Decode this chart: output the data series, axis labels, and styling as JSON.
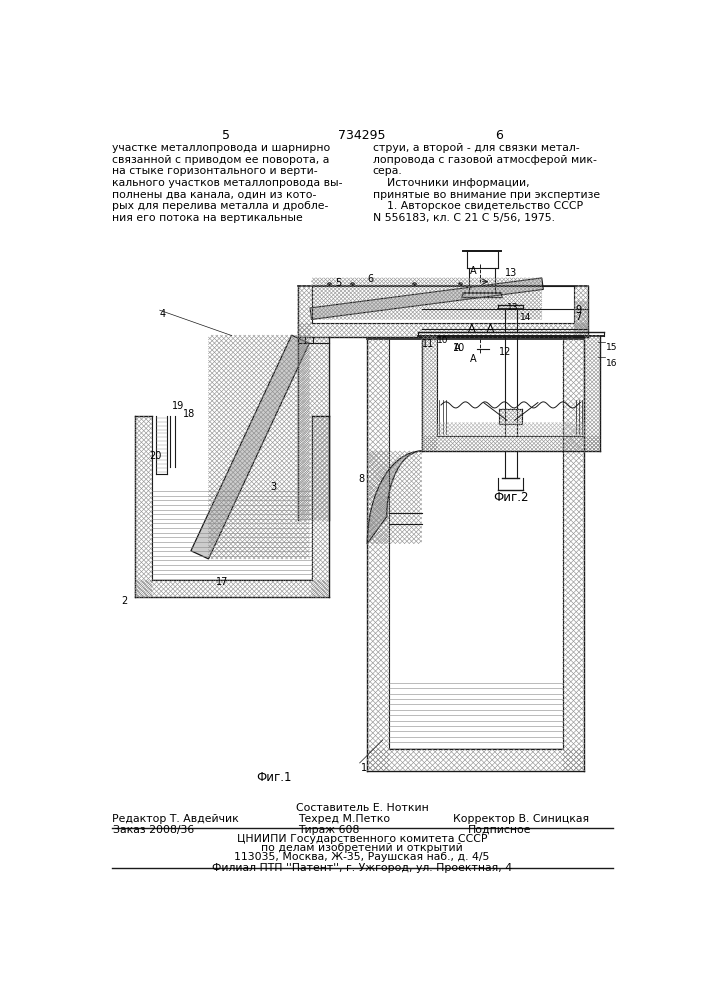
{
  "page_number_left": "5",
  "page_number_right": "6",
  "patent_number": "734295",
  "text_left_col": "участке металлопровода и шарнирно\nсвязанной с приводом ее поворота, а\nна стыке горизонтального и верти-\nкального участков металлопровода вы-\nполнены два канала, один из кото-\nрых для перелива металла и дробле-\nния его потока на вертикальные",
  "text_right_col": "струи, а второй - для связки метал-\nлопровода с газовой атмосферой мик-\nсера.\n    Источники информации,\nпринятые во внимание при экспертизе\n    1. Авторское свидетельство СССР\nN 556183, кл. С 21 С 5/56, 1975.",
  "fig1_label": "Фиг.1",
  "fig2_label": "Фиг.2",
  "section_label": "А - А",
  "footer_line1_center": "Составитель Е. Ноткин",
  "footer_line2_left": "Редактор Т. Авдейчик",
  "footer_line2_center": "Техред М.Петко",
  "footer_line2_right": "Корректор В. Синицкая",
  "footer_order": "Заказ 2008/36",
  "footer_print": "Тираж 608",
  "footer_sign": "Подписное",
  "footer_org1": "ЦНИИПИ Государственного комитета СССР",
  "footer_org2": "по делам изобретений и открытий",
  "footer_addr": "113035, Москва, Ж-35, Раушская наб., д. 4/5",
  "footer_branch": "Филиал ПТП ''Патент'', г. Ужгород, ул. Проектная, 4",
  "bg_color": "#ffffff",
  "text_color": "#000000",
  "line_color": "#1a1a1a",
  "hatch_color": "#555555"
}
